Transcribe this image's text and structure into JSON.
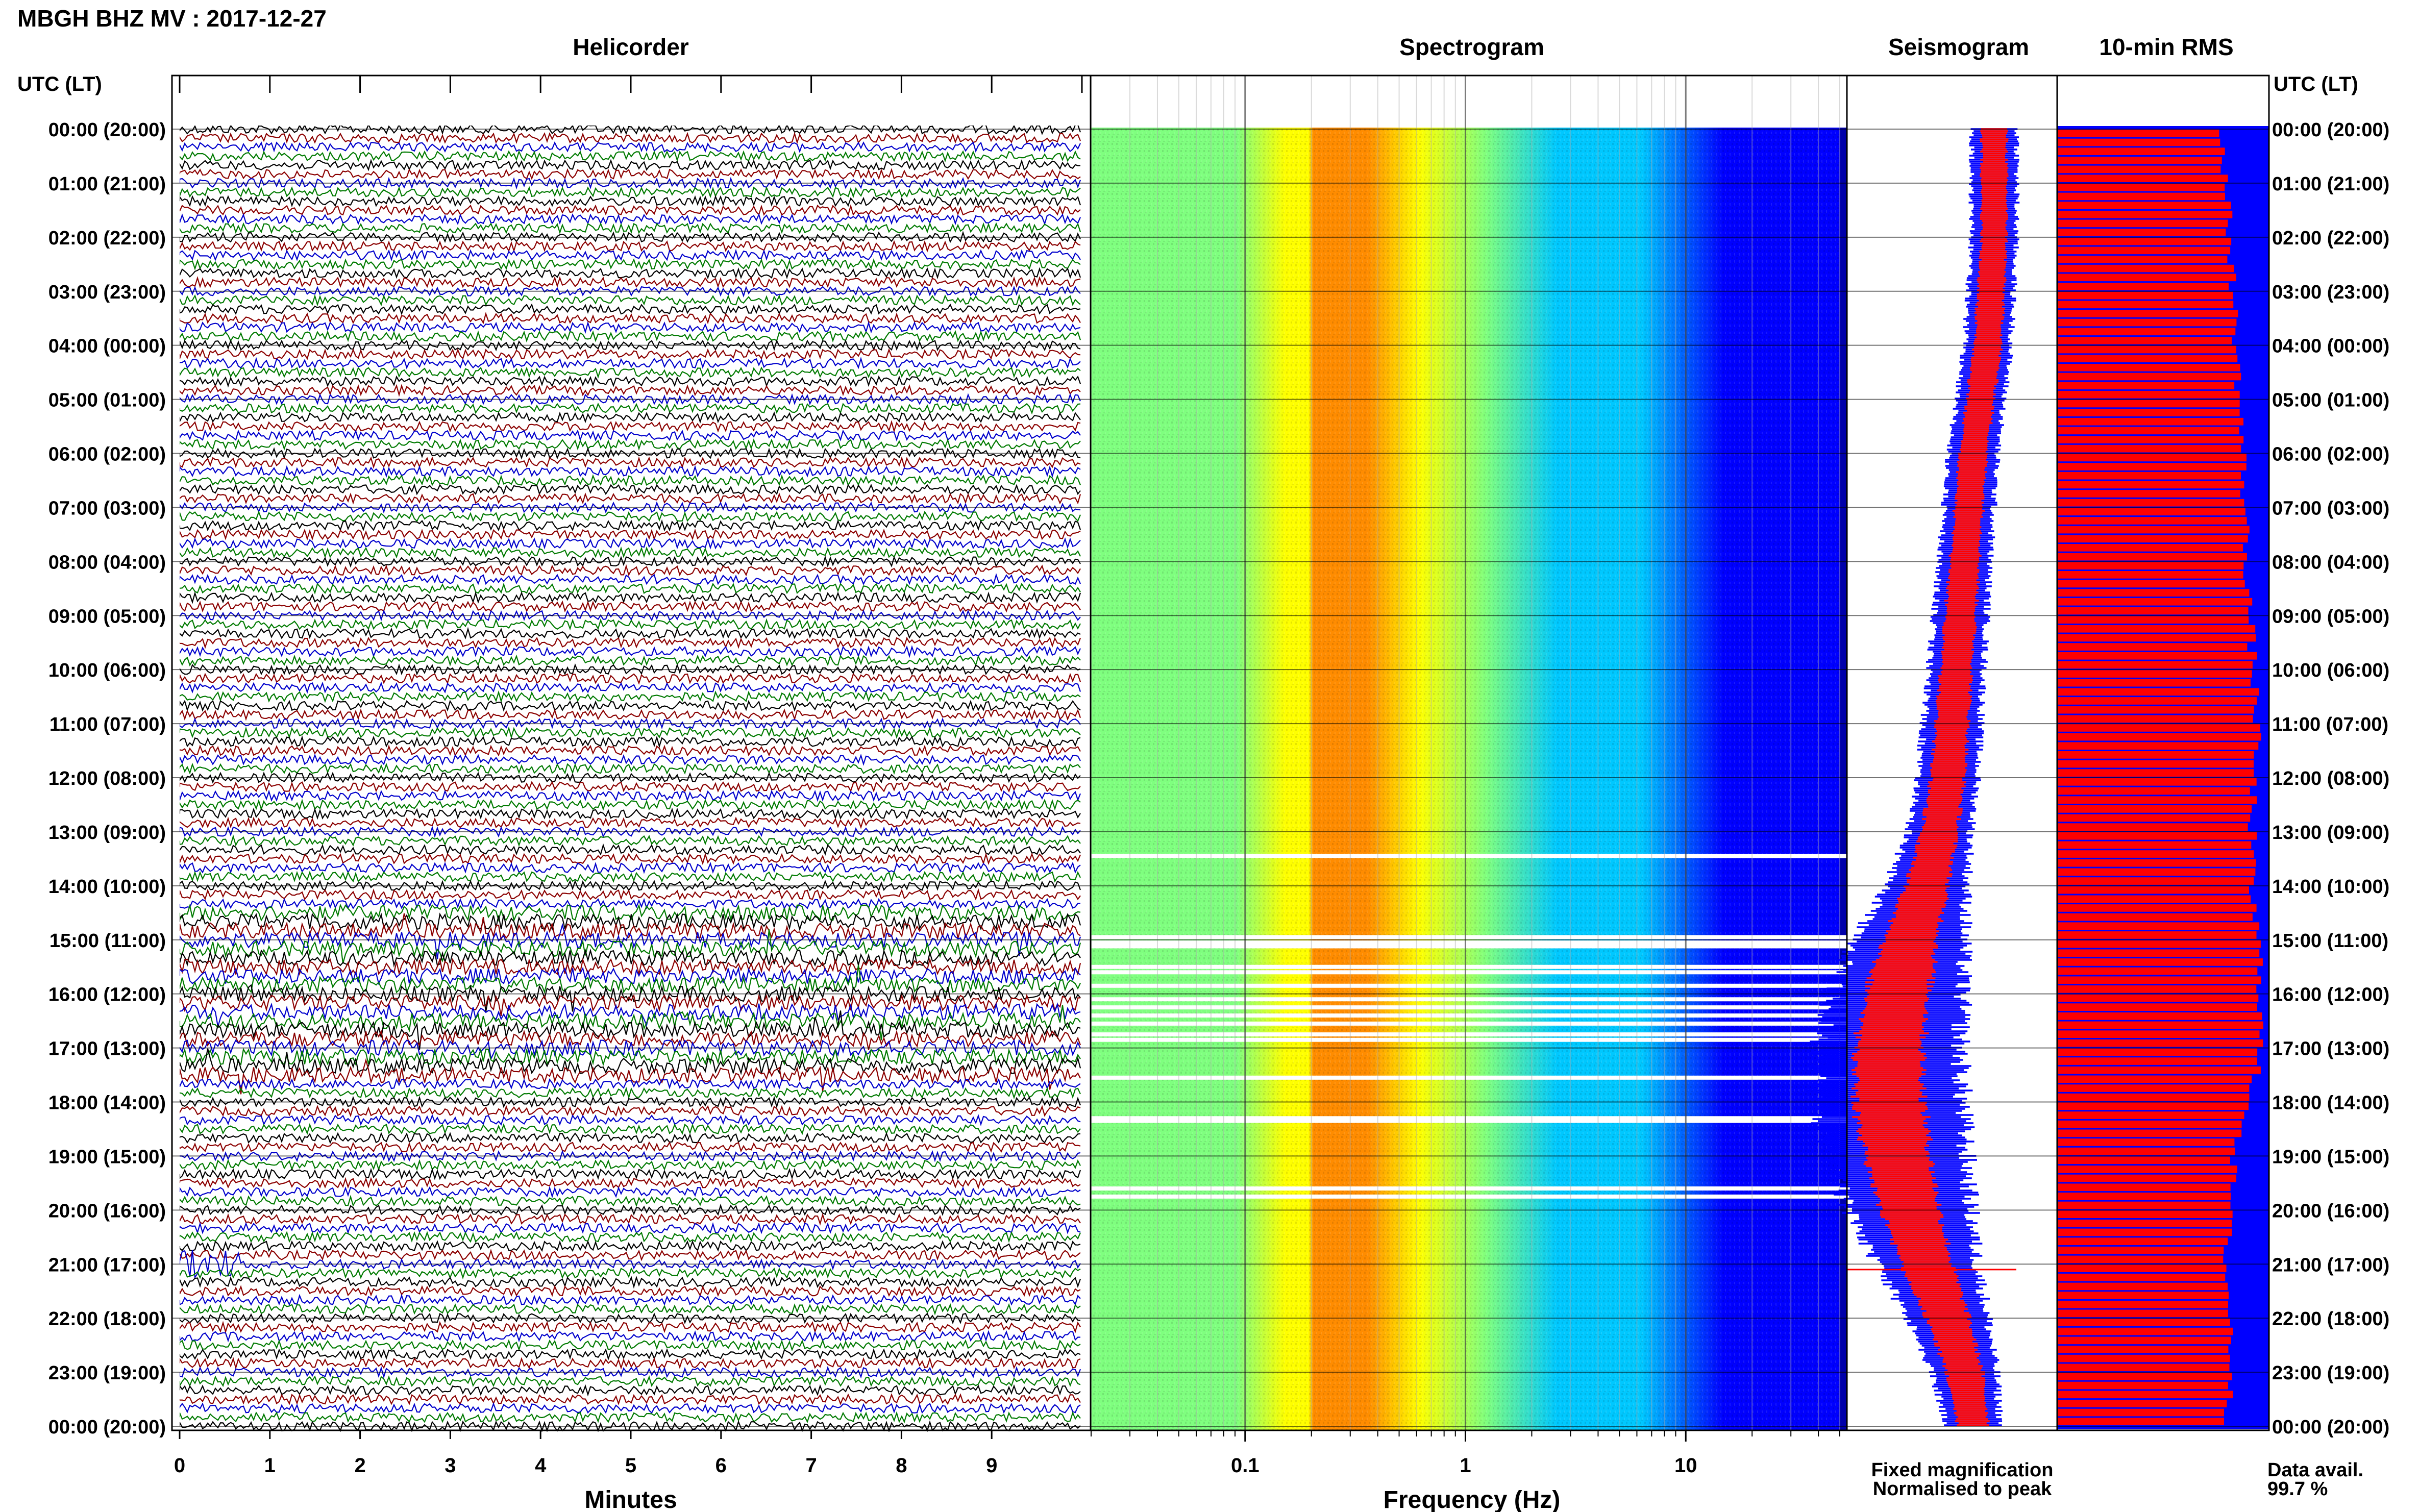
{
  "header": {
    "title": "MBGH BHZ MV : 2017-12-27",
    "utc_label_left": "UTC (LT)",
    "utc_label_right": "UTC (LT)"
  },
  "panels": {
    "helicorder": "Helicorder",
    "spectrogram": "Spectrogram",
    "seismogram": "Seismogram",
    "rms": "10-min RMS"
  },
  "axes": {
    "helicorder_xlabel": "Minutes",
    "spectrogram_xlabel": "Frequency (Hz)"
  },
  "time_labels": [
    "00:00 (20:00)",
    "01:00 (21:00)",
    "02:00 (22:00)",
    "03:00 (23:00)",
    "04:00 (00:00)",
    "05:00 (01:00)",
    "06:00 (02:00)",
    "07:00 (03:00)",
    "08:00 (04:00)",
    "09:00 (05:00)",
    "10:00 (06:00)",
    "11:00 (07:00)",
    "12:00 (08:00)",
    "13:00 (09:00)",
    "14:00 (10:00)",
    "15:00 (11:00)",
    "16:00 (12:00)",
    "17:00 (13:00)",
    "18:00 (14:00)",
    "19:00 (15:00)",
    "20:00 (16:00)",
    "21:00 (17:00)",
    "22:00 (18:00)",
    "23:00 (19:00)",
    "00:00 (20:00)"
  ],
  "legend": {
    "fixed": "Fixed magnification",
    "normalised": "Normalised to peak",
    "fixed_color": "#0000ff",
    "normalised_color": "#ff0000"
  },
  "availability": {
    "label": "Data avail.",
    "value": "99.7 %"
  },
  "chart_data": [
    {
      "type": "line",
      "panel": "helicorder",
      "xlabel": "Minutes",
      "ylabel": "UTC (LT)",
      "xlim": [
        0,
        10
      ],
      "x_ticks": [
        "0",
        "1",
        "2",
        "3",
        "4",
        "5",
        "6",
        "7",
        "8",
        "9"
      ],
      "trace_colors": [
        "#000000",
        "#8b0000",
        "#0000cc",
        "#007a00"
      ],
      "traces_per_hour": 6,
      "hours": 24,
      "noisy_interval_utc": [
        14.5,
        17.5
      ],
      "event_utc": 21.0
    },
    {
      "type": "heatmap",
      "panel": "spectrogram",
      "xlabel": "Frequency (Hz)",
      "x_scale": "log",
      "xlim": [
        0.02,
        50
      ],
      "x_ticks": [
        "0.1",
        "1",
        "10"
      ],
      "x_tick_values": [
        0.1,
        1,
        10
      ],
      "colormap": [
        "#0000ff",
        "#00c8ff",
        "#7fff7f",
        "#ffff00",
        "#ff8c00"
      ],
      "peak_band_hz": [
        0.2,
        0.5
      ],
      "gap_rows_utc": [
        13.45,
        14.95,
        15.05,
        15.12,
        15.5,
        15.6,
        15.85,
        16.1,
        16.25,
        16.4,
        16.55,
        16.75,
        16.85,
        17.55,
        18.3,
        18.35,
        19.6,
        19.75
      ]
    },
    {
      "type": "area",
      "panel": "seismogram",
      "series": [
        {
          "name": "Fixed magnification",
          "color": "#0000ff",
          "x": [
            0,
            2,
            4,
            6,
            8,
            10,
            12,
            13,
            14,
            15,
            16,
            17,
            18,
            19,
            20,
            21,
            22,
            23,
            24
          ],
          "amplitude": [
            0.22,
            0.21,
            0.22,
            0.23,
            0.24,
            0.26,
            0.28,
            0.3,
            0.38,
            0.52,
            0.62,
            0.68,
            0.7,
            0.66,
            0.58,
            0.48,
            0.38,
            0.3,
            0.26
          ],
          "center": [
            0.7,
            0.7,
            0.67,
            0.6,
            0.56,
            0.52,
            0.48,
            0.44,
            0.38,
            0.3,
            0.24,
            0.2,
            0.2,
            0.24,
            0.3,
            0.38,
            0.48,
            0.56,
            0.6
          ]
        },
        {
          "name": "Normalised to peak",
          "color": "#ff0000",
          "x": [
            0,
            2,
            4,
            6,
            8,
            10,
            12,
            13,
            14,
            15,
            16,
            17,
            18,
            19,
            20,
            21,
            22,
            23,
            24
          ],
          "amplitude": [
            0.12,
            0.12,
            0.13,
            0.13,
            0.14,
            0.15,
            0.16,
            0.17,
            0.2,
            0.26,
            0.3,
            0.32,
            0.33,
            0.31,
            0.28,
            0.24,
            0.2,
            0.17,
            0.15
          ],
          "center": [
            0.7,
            0.7,
            0.67,
            0.6,
            0.56,
            0.52,
            0.48,
            0.44,
            0.38,
            0.3,
            0.24,
            0.2,
            0.2,
            0.24,
            0.3,
            0.38,
            0.48,
            0.56,
            0.6
          ]
        }
      ],
      "spike_utc": 21.1
    },
    {
      "type": "bar",
      "panel": "10-min RMS",
      "orientation": "horizontal",
      "bins": 144,
      "series": [
        {
          "name": "Fixed magnification",
          "color": "#0000ff",
          "fraction_of_width": 1.0
        },
        {
          "name": "Normalised to peak",
          "color": "#ff0000",
          "x": [
            0,
            2,
            4,
            6,
            8,
            10,
            11,
            12,
            14,
            15,
            16,
            17,
            18,
            19,
            20,
            21,
            22,
            23,
            24
          ],
          "fraction_of_width": [
            0.78,
            0.82,
            0.85,
            0.88,
            0.9,
            0.93,
            0.95,
            0.93,
            0.92,
            0.95,
            0.97,
            0.96,
            0.92,
            0.84,
            0.82,
            0.8,
            0.82,
            0.83,
            0.8
          ]
        }
      ]
    }
  ]
}
